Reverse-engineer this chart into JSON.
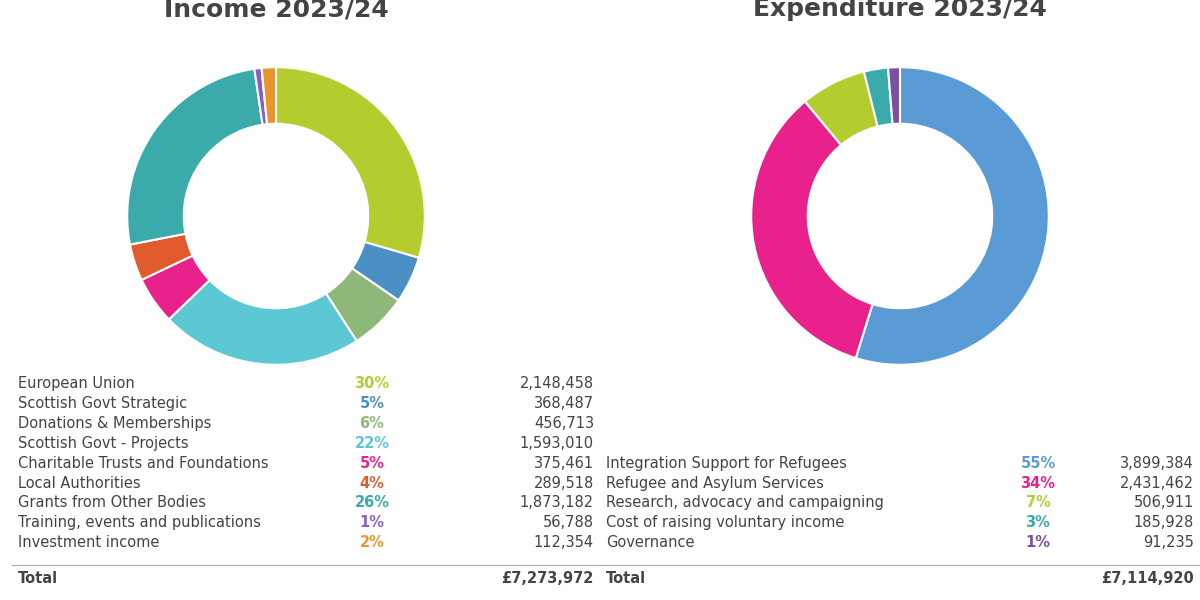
{
  "income": {
    "title": "Income 2023/24",
    "labels": [
      "European Union",
      "Scottish Govt Strategic",
      "Donations & Memberships",
      "Scottish Govt - Projects",
      "Charitable Trusts and Foundations",
      "Local Authorities",
      "Grants from Other Bodies",
      "Training, events and publications",
      "Investment income"
    ],
    "values": [
      2148458,
      368487,
      456713,
      1593010,
      375461,
      289518,
      1873182,
      56788,
      112354
    ],
    "percentages": [
      "30%",
      "5%",
      "6%",
      "22%",
      "5%",
      "4%",
      "26%",
      "1%",
      "2%"
    ],
    "colors": [
      "#b5cc2e",
      "#4a90c4",
      "#8db87a",
      "#5bc8d4",
      "#e8218c",
      "#e05a2b",
      "#3aabaa",
      "#8b5fb8",
      "#e8952e"
    ],
    "pct_colors": [
      "#b5cc2e",
      "#4a90c4",
      "#8db87a",
      "#5bc8d4",
      "#e8218c",
      "#e05a2b",
      "#3aabaa",
      "#8b5fb8",
      "#e8952e"
    ],
    "amounts": [
      "2,148,458",
      "368,487",
      "456,713",
      "1,593,010",
      "375,461",
      "289,518",
      "1,873,182",
      "56,788",
      "112,354"
    ],
    "total": "£7,273,972"
  },
  "expenditure": {
    "title": "Expenditure 2023/24",
    "labels": [
      "Integration Support for Refugees",
      "Refugee and Asylum Services",
      "Research, advocacy and campaigning",
      "Cost of raising voluntary income",
      "Governance"
    ],
    "values": [
      3899384,
      2431462,
      506911,
      185928,
      91235
    ],
    "percentages": [
      "55%",
      "34%",
      "7%",
      "3%",
      "1%"
    ],
    "colors": [
      "#5b9bd5",
      "#e8218c",
      "#b5cc2e",
      "#3aabaa",
      "#7b4fa6"
    ],
    "pct_colors": [
      "#5b9bd5",
      "#e8218c",
      "#b5cc2e",
      "#3aabaa",
      "#7b4fa6"
    ],
    "amounts": [
      "3,899,384",
      "2,431,462",
      "506,911",
      "185,928",
      "91,235"
    ],
    "total": "£7,114,920"
  },
  "background_color": "#ffffff",
  "title_fontsize": 18,
  "label_fontsize": 10.5,
  "donut_width": 0.38
}
